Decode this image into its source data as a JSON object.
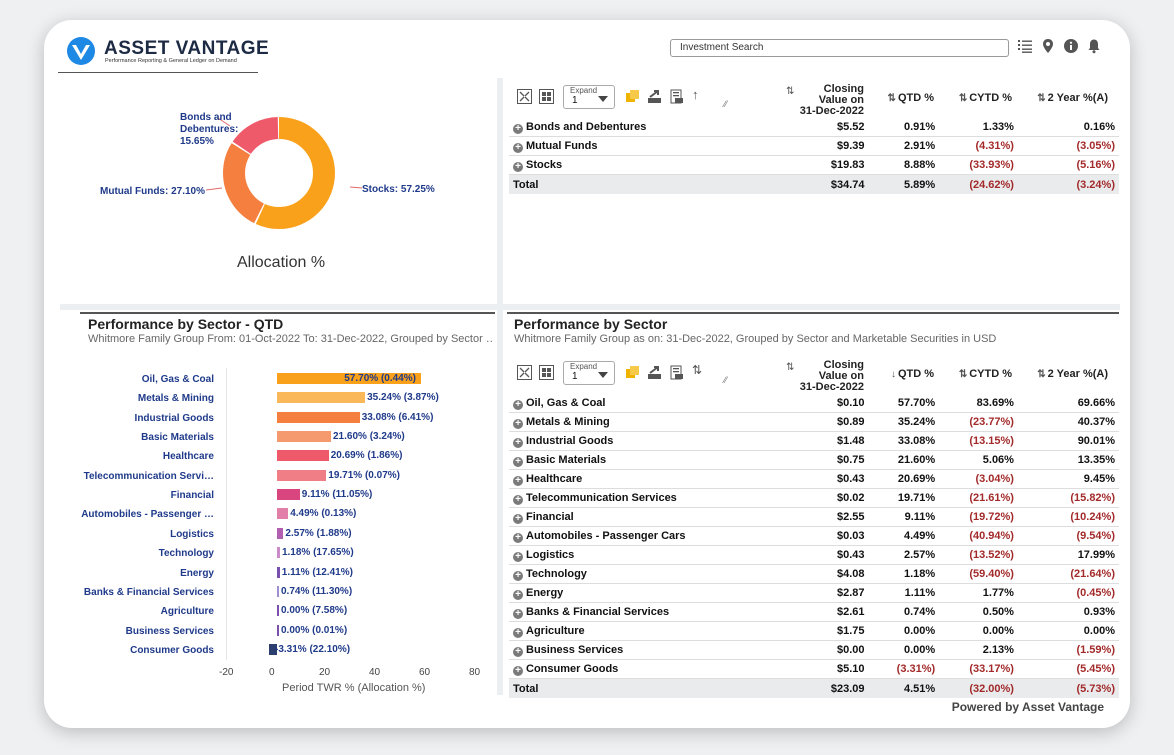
{
  "header": {
    "logo_title": "ASSET VANTAGE",
    "logo_tagline": "Performance Reporting & General Ledger on Demand",
    "search_placeholder": "Investment Search",
    "icons": [
      "list-icon",
      "location-pin-icon",
      "info-icon",
      "bell-icon"
    ]
  },
  "donut": {
    "title": "Allocation %",
    "slices": [
      {
        "label": "Stocks: 57.25%",
        "value": 57.25,
        "color": "#f9a11b"
      },
      {
        "label": "Mutual Funds: 27.10%",
        "value": 27.1,
        "color": "#f47f3f"
      },
      {
        "label": "Bonds and Debentures: 15.65%",
        "value": 15.65,
        "color": "#ef5a6b"
      }
    ],
    "bonds_label_line1": "Bonds and",
    "bonds_label_line2": "Debentures:",
    "bonds_label_line3": "15.65%",
    "mutual_label": "Mutual Funds: 27.10%",
    "stocks_label": "Stocks: 57.25%"
  },
  "toolbar": {
    "expand_label": "Expand",
    "expand_value": "1"
  },
  "columns": {
    "closing_l1": "Closing",
    "closing_l2": "Value on",
    "closing_l3": "31-Dec-2022",
    "qtd": "QTD %",
    "cytd": "CYTD %",
    "two_year": "2 Year %(A)"
  },
  "asset_table": {
    "rows": [
      {
        "name": "Bonds and Debentures",
        "closing": "$5.52",
        "qtd": "0.91%",
        "cytd": "1.33%",
        "two_year": "0.16%"
      },
      {
        "name": "Mutual Funds",
        "closing": "$9.39",
        "qtd": "2.91%",
        "cytd": "(4.31%)",
        "two_year": "(3.05%)"
      },
      {
        "name": "Stocks",
        "closing": "$19.83",
        "qtd": "8.88%",
        "cytd": "(33.93%)",
        "two_year": "(5.16%)"
      }
    ],
    "total": {
      "name": "Total",
      "closing": "$34.74",
      "qtd": "5.89%",
      "cytd": "(24.62%)",
      "two_year": "(3.24%)"
    }
  },
  "bar_panel": {
    "title": "Performance by Sector - QTD",
    "subtitle": "Whitmore Family Group From: 01-Oct-2022 To: 31-Dec-2022, Grouped by Sector …"
  },
  "chart_data": {
    "type": "bar",
    "orientation": "horizontal",
    "categories": [
      "Oil, Gas & Coal",
      "Metals & Mining",
      "Industrial Goods",
      "Basic Materials",
      "Healthcare",
      "Telecommunication Servi…",
      "Financial",
      "Automobiles - Passenger …",
      "Logistics",
      "Technology",
      "Energy",
      "Banks & Financial Services",
      "Agriculture",
      "Business Services",
      "Consumer Goods"
    ],
    "values": [
      57.7,
      35.24,
      33.08,
      21.6,
      20.69,
      19.71,
      9.11,
      4.49,
      2.57,
      1.18,
      1.11,
      0.74,
      0.0,
      0.0,
      -3.31
    ],
    "data_labels": [
      "57.70% (0.44%)",
      "35.24% (3.87%)",
      "33.08% (6.41%)",
      "21.60% (3.24%)",
      "20.69% (1.86%)",
      "19.71% (0.07%)",
      "9.11% (11.05%)",
      "4.49% (0.13%)",
      "2.57% (1.88%)",
      "1.18% (17.65%)",
      "1.11% (12.41%)",
      "0.74% (11.30%)",
      "0.00% (7.58%)",
      "0.00% (0.01%)",
      "-3.31% (22.10%)"
    ],
    "colors": [
      "#f9a11b",
      "#fbb85a",
      "#f47f3f",
      "#f59a6e",
      "#ef5a6b",
      "#f07e86",
      "#d9467f",
      "#e27fa8",
      "#b35fb0",
      "#c98cc9",
      "#7a4fb0",
      "#9f8fd0",
      "#7a4fb0",
      "#7a4fb0",
      "#2c3e6e"
    ],
    "xlabel": "Period TWR % (Allocation %)",
    "xlim": [
      -20,
      80
    ],
    "xticks": [
      "-20",
      "0",
      "20",
      "40",
      "60",
      "80"
    ]
  },
  "sector_panel": {
    "title": "Performance by Sector",
    "subtitle": "Whitmore Family Group as on: 31-Dec-2022, Grouped by Sector and Marketable Securities in USD"
  },
  "sector_table": {
    "rows": [
      {
        "name": "Oil, Gas & Coal",
        "closing": "$0.10",
        "qtd": "57.70%",
        "cytd": "83.69%",
        "two_year": "69.66%"
      },
      {
        "name": "Metals & Mining",
        "closing": "$0.89",
        "qtd": "35.24%",
        "cytd": "(23.77%)",
        "two_year": "40.37%"
      },
      {
        "name": "Industrial Goods",
        "closing": "$1.48",
        "qtd": "33.08%",
        "cytd": "(13.15%)",
        "two_year": "90.01%"
      },
      {
        "name": "Basic Materials",
        "closing": "$0.75",
        "qtd": "21.60%",
        "cytd": "5.06%",
        "two_year": "13.35%"
      },
      {
        "name": "Healthcare",
        "closing": "$0.43",
        "qtd": "20.69%",
        "cytd": "(3.04%)",
        "two_year": "9.45%"
      },
      {
        "name": "Telecommunication Services",
        "closing": "$0.02",
        "qtd": "19.71%",
        "cytd": "(21.61%)",
        "two_year": "(15.82%)"
      },
      {
        "name": "Financial",
        "closing": "$2.55",
        "qtd": "9.11%",
        "cytd": "(19.72%)",
        "two_year": "(10.24%)"
      },
      {
        "name": "Automobiles - Passenger Cars",
        "closing": "$0.03",
        "qtd": "4.49%",
        "cytd": "(40.94%)",
        "two_year": "(9.54%)"
      },
      {
        "name": "Logistics",
        "closing": "$0.43",
        "qtd": "2.57%",
        "cytd": "(13.52%)",
        "two_year": "17.99%"
      },
      {
        "name": "Technology",
        "closing": "$4.08",
        "qtd": "1.18%",
        "cytd": "(59.40%)",
        "two_year": "(21.64%)"
      },
      {
        "name": "Energy",
        "closing": "$2.87",
        "qtd": "1.11%",
        "cytd": "1.77%",
        "two_year": "(0.45%)"
      },
      {
        "name": "Banks & Financial Services",
        "closing": "$2.61",
        "qtd": "0.74%",
        "cytd": "0.50%",
        "two_year": "0.93%"
      },
      {
        "name": "Agriculture",
        "closing": "$1.75",
        "qtd": "0.00%",
        "cytd": "0.00%",
        "two_year": "0.00%"
      },
      {
        "name": "Business Services",
        "closing": "$0.00",
        "qtd": "0.00%",
        "cytd": "2.13%",
        "two_year": "(1.59%)"
      },
      {
        "name": "Consumer Goods",
        "closing": "$5.10",
        "qtd": "(3.31%)",
        "cytd": "(33.17%)",
        "two_year": "(5.45%)"
      }
    ],
    "total": {
      "name": "Total",
      "closing": "$23.09",
      "qtd": "4.51%",
      "cytd": "(32.00%)",
      "two_year": "(5.73%)"
    }
  },
  "footer": {
    "powered_by": "Powered by Asset Vantage"
  }
}
